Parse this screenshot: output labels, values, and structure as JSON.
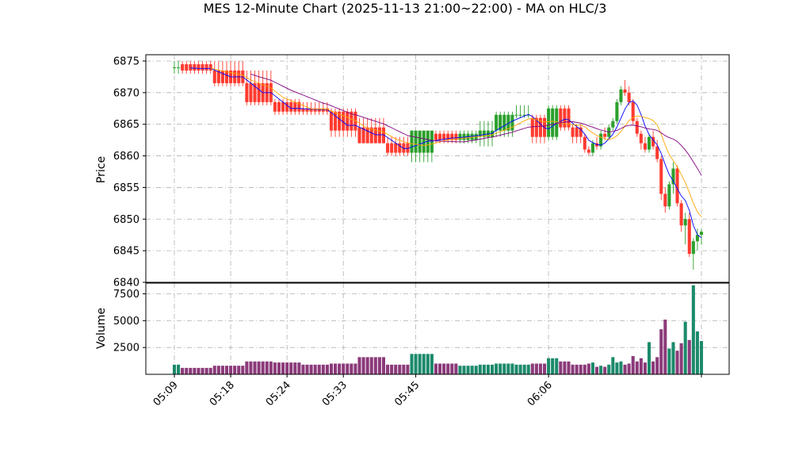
{
  "chart_data": {
    "type": "candlestick",
    "title": "MES 12-Minute Chart (2025-11-13 21:00~22:00) - MA on HLC/3",
    "price_panel": {
      "ylabel": "Price",
      "ylim": [
        6840,
        6876
      ],
      "yticks": [
        6840,
        6845,
        6850,
        6855,
        6860,
        6865,
        6870,
        6875
      ],
      "grid": true
    },
    "volume_panel": {
      "ylabel": "Volume",
      "ylim": [
        0,
        8500
      ],
      "yticks": [
        2500,
        5000,
        7500
      ],
      "grid": true
    },
    "xlabels": [
      "05:09",
      "05:18",
      "05:24",
      "05:33",
      "05:45",
      "06:06"
    ],
    "colors": {
      "up": "#2ca02c",
      "down": "#ff3b30",
      "volume_up": "#1b8a6b",
      "volume_down": "#8b3a7a",
      "ma_fast": "#0000ff",
      "ma_mid": "#ffa500",
      "ma_slow": "#800080",
      "grid": "#b0b0b0"
    },
    "segments": [
      {
        "n": 2,
        "o": 6874,
        "h": 6875,
        "l": 6873,
        "c": 6874,
        "v": 900
      },
      {
        "n": 8,
        "o": 6874.5,
        "h": 6875,
        "l": 6873,
        "c": 6873.5,
        "v": 600
      },
      {
        "n": 8,
        "o": 6873.5,
        "h": 6875,
        "l": 6871,
        "c": 6871.5,
        "v": 800
      },
      {
        "n": 7,
        "o": 6871.5,
        "h": 6873.5,
        "l": 6868,
        "c": 6868.5,
        "v": 1200
      },
      {
        "n": 7,
        "o": 6868.5,
        "h": 6869,
        "l": 6866.5,
        "c": 6867,
        "v": 1100
      },
      {
        "n": 7,
        "o": 6867.5,
        "h": 6868.5,
        "l": 6866.5,
        "c": 6867,
        "v": 900
      },
      {
        "n": 7,
        "o": 6867,
        "h": 6867.5,
        "l": 6863,
        "c": 6864,
        "v": 1000
      },
      {
        "n": 7,
        "o": 6864.5,
        "h": 6866,
        "l": 6862,
        "c": 6862,
        "v": 1600
      },
      {
        "n": 6,
        "o": 6862,
        "h": 6863,
        "l": 6860,
        "c": 6860.5,
        "v": 900
      },
      {
        "n": 6,
        "o": 6860.5,
        "h": 6864,
        "l": 6859,
        "c": 6864,
        "v": 1900
      },
      {
        "n": 6,
        "o": 6863.5,
        "h": 6864,
        "l": 6862,
        "c": 6862.5,
        "v": 1000
      },
      {
        "n": 5,
        "o": 6862.5,
        "h": 6864,
        "l": 6862,
        "c": 6863.5,
        "v": 800
      },
      {
        "n": 4,
        "o": 6863,
        "h": 6865.5,
        "l": 6861.5,
        "c": 6864,
        "v": 900
      },
      {
        "n": 5,
        "o": 6864,
        "h": 6867,
        "l": 6863,
        "c": 6866.5,
        "v": 1000
      },
      {
        "n": 4,
        "o": 6866.5,
        "h": 6868,
        "l": 6866,
        "c": 6866.5,
        "v": 900
      },
      {
        "n": 4,
        "o": 6866,
        "h": 6866.5,
        "l": 6862,
        "c": 6863,
        "v": 1000
      },
      {
        "n": 3,
        "o": 6863,
        "h": 6868,
        "l": 6862.5,
        "c": 6867.5,
        "v": 1500
      },
      {
        "n": 3,
        "o": 6867.5,
        "h": 6868,
        "l": 6864,
        "c": 6864.5,
        "v": 1200
      },
      {
        "n": 3,
        "o": 6864.5,
        "h": 6865,
        "l": 6862,
        "c": 6863,
        "v": 900
      }
    ],
    "tail": [
      [
        6863,
        6863.5,
        6860.5,
        6861,
        900
      ],
      [
        6861,
        6861.5,
        6860,
        6860.5,
        1000
      ],
      [
        6860.5,
        6862.5,
        6860,
        6862,
        1100
      ],
      [
        6862,
        6863,
        6861,
        6861.5,
        700
      ],
      [
        6861.5,
        6864,
        6861,
        6863.5,
        800
      ],
      [
        6863.5,
        6864.5,
        6862.5,
        6863,
        700
      ],
      [
        6863,
        6865,
        6862.5,
        6864.5,
        900
      ],
      [
        6864.5,
        6866,
        6864,
        6865.5,
        1600
      ],
      [
        6865.5,
        6869,
        6865,
        6868.5,
        1100
      ],
      [
        6868.5,
        6871,
        6868,
        6870.5,
        1200
      ],
      [
        6870.5,
        6872,
        6869.5,
        6870,
        900
      ],
      [
        6870,
        6871,
        6868,
        6868.5,
        1000
      ],
      [
        6868.5,
        6869,
        6865,
        6865.5,
        1700
      ],
      [
        6865.5,
        6866,
        6863,
        6863.5,
        1200
      ],
      [
        6863.5,
        6864,
        6861,
        6862,
        1500
      ],
      [
        6862,
        6863,
        6860.5,
        6861,
        1100
      ],
      [
        6861,
        6863.5,
        6860.5,
        6863,
        3000
      ],
      [
        6863,
        6864,
        6861,
        6861.5,
        1200
      ],
      [
        6861.5,
        6862.5,
        6859,
        6859.5,
        1600
      ],
      [
        6859.5,
        6860,
        6853,
        6854,
        4200
      ],
      [
        6854,
        6855,
        6851,
        6852,
        5100
      ],
      [
        6852,
        6856,
        6851.5,
        6855.5,
        2400
      ],
      [
        6855.5,
        6859,
        6854,
        6858,
        3000
      ],
      [
        6858,
        6858.5,
        6852,
        6852.5,
        2200
      ],
      [
        6852.5,
        6853,
        6848,
        6849,
        2900
      ],
      [
        6849,
        6851,
        6846,
        6850,
        4900
      ],
      [
        6850,
        6851,
        6844,
        6844.5,
        3200
      ],
      [
        6844.5,
        6847,
        6842,
        6846.5,
        8300
      ],
      [
        6846.5,
        6848.5,
        6845,
        6847.5,
        4000
      ],
      [
        6847.5,
        6848.5,
        6846,
        6848,
        3100
      ]
    ]
  }
}
